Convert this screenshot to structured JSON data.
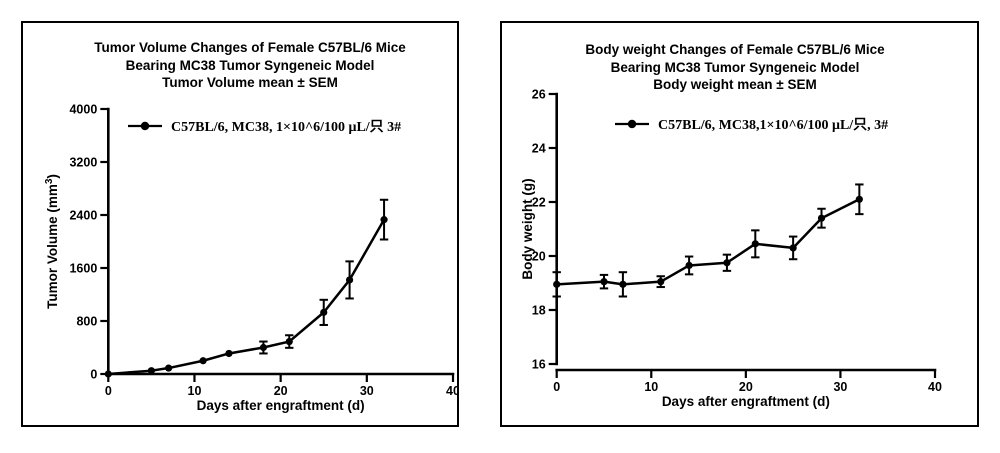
{
  "figure": {
    "background": "#ffffff",
    "border_color": "#000000",
    "ink_color": "#000000"
  },
  "chart_data": [
    {
      "type": "line",
      "panel": "left",
      "title_lines": [
        "Tumor Volume Changes of Female C57BL/6 Mice",
        "Bearing MC38 Tumor Syngeneic Model",
        "Tumor Volume mean ± SEM"
      ],
      "legend": {
        "label": "C57BL/6, MC38, 1×10^6/100 μL/只 3#",
        "marker": "filled-circle-on-line"
      },
      "xlabel": "Days after engraftment (d)",
      "ylabel": "Tumor Volume (mm³)",
      "xlim": [
        0,
        40
      ],
      "ylim": [
        0,
        4000
      ],
      "x_ticks": [
        0,
        10,
        20,
        30,
        40
      ],
      "y_ticks": [
        0,
        800,
        1600,
        2400,
        3200,
        4000
      ],
      "grid": false,
      "error_bars": "mean ± SEM",
      "series": [
        {
          "name": "C57BL/6, MC38, 1×10^6/100 μL/只 3#",
          "x": [
            0,
            5,
            7,
            11,
            14,
            18,
            21,
            25,
            28,
            32
          ],
          "y": [
            0,
            50,
            90,
            200,
            310,
            400,
            490,
            930,
            1420,
            2330
          ],
          "sem": [
            0,
            12,
            18,
            25,
            40,
            90,
            95,
            190,
            280,
            300
          ]
        }
      ]
    },
    {
      "type": "line",
      "panel": "right",
      "title_lines": [
        "Body weight Changes of Female C57BL/6 Mice",
        "Bearing MC38 Tumor Syngeneic Model",
        "Body weight mean ± SEM"
      ],
      "legend": {
        "label": "C57BL/6, MC38,1×10^6/100 μL/只, 3#",
        "marker": "filled-circle-on-line"
      },
      "xlabel": "Days after engraftment (d)",
      "ylabel": "Body weight (g)",
      "xlim": [
        0,
        40
      ],
      "ylim": [
        16,
        26
      ],
      "x_ticks": [
        0,
        10,
        20,
        30,
        40
      ],
      "y_ticks": [
        16,
        18,
        20,
        22,
        24,
        26
      ],
      "grid": false,
      "error_bars": "mean ± SEM",
      "series": [
        {
          "name": "C57BL/6, MC38,1×10^6/100 μL/只, 3#",
          "x": [
            0,
            5,
            7,
            11,
            14,
            18,
            21,
            25,
            28,
            32
          ],
          "y": [
            18.95,
            19.05,
            18.95,
            19.05,
            19.65,
            19.75,
            20.45,
            20.3,
            21.4,
            22.1
          ],
          "sem": [
            0.45,
            0.25,
            0.45,
            0.2,
            0.33,
            0.3,
            0.5,
            0.42,
            0.35,
            0.55
          ]
        }
      ]
    }
  ]
}
